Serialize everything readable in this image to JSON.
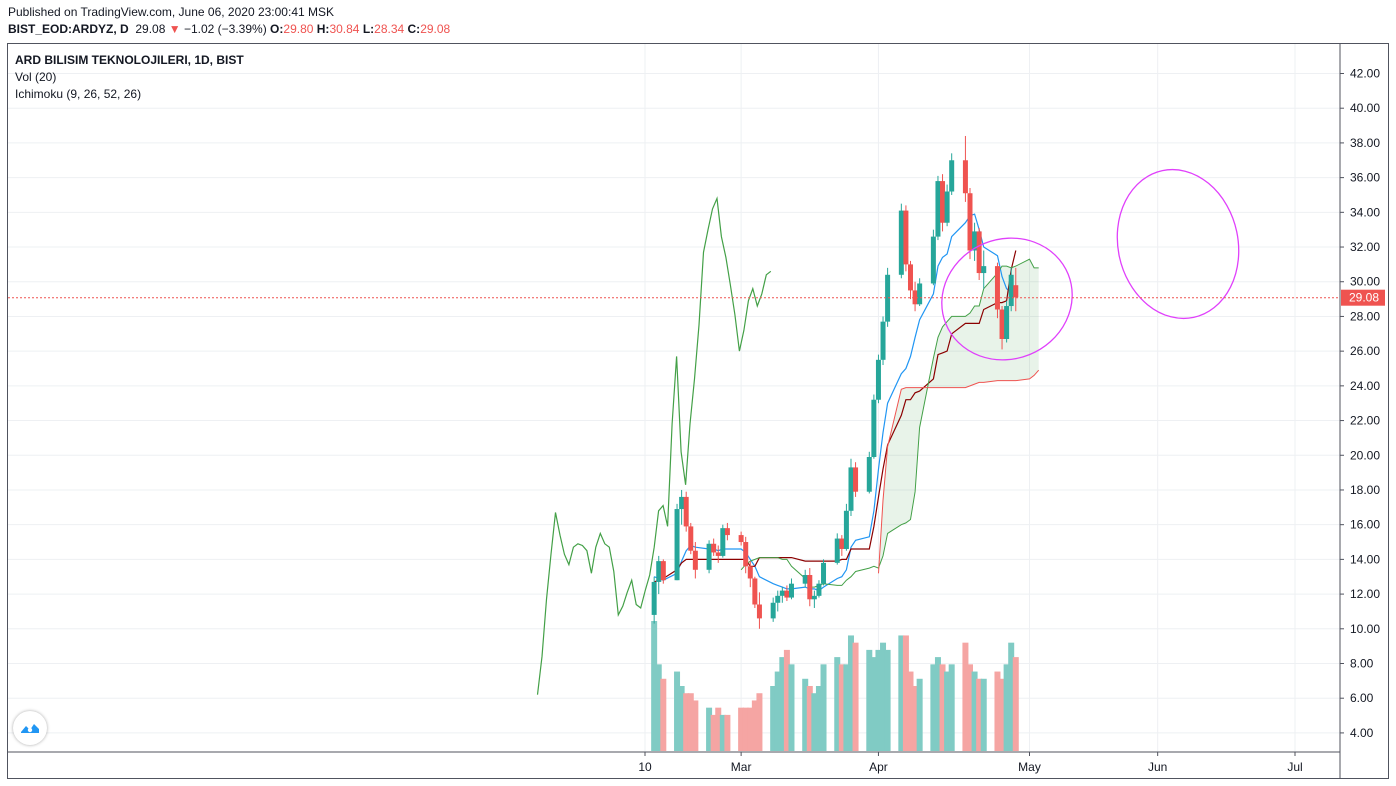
{
  "header": {
    "published": "Published on TradingView.com, June 06, 2020 23:00:41 MSK",
    "symbol": "BIST_EOD:ARDYZ, D",
    "last": "29.08",
    "arrow": "▼",
    "change": "−1.02 (−3.39%)",
    "o_label": "O:",
    "o_value": "29.80",
    "h_label": "H:",
    "h_value": "30.84",
    "l_label": "L:",
    "l_value": "28.34",
    "c_label": "C:",
    "c_value": "29.08"
  },
  "legend": {
    "title": "ARD BILISIM TEKNOLOJILERI, 1D, BIST",
    "vol": "Vol (20)",
    "ichimoku": "Ichimoku (9, 26, 52, 26)"
  },
  "price_tag": "29.08",
  "colors": {
    "up": "#26a69a",
    "down": "#ef5350",
    "chikou": "#43a047",
    "conversion": "#2196f3",
    "base": "#8b0000",
    "span_a": "#43a047",
    "span_b": "#ef5350",
    "annotation": "#e040fb",
    "last_price_line": "#ef5350"
  },
  "chart_data": {
    "type": "candlestick",
    "x_tick_labels": [
      {
        "label": "10",
        "date": "2020-02-10"
      },
      {
        "label": "Mar",
        "date": "2020-03-02"
      },
      {
        "label": "Apr",
        "date": "2020-04-01"
      },
      {
        "label": "May",
        "date": "2020-05-04"
      },
      {
        "label": "Jun",
        "date": "2020-06-01"
      },
      {
        "label": "Jul",
        "date": "2020-07-01"
      }
    ],
    "y_tick_labels": [
      "4.00",
      "6.00",
      "8.00",
      "10.00",
      "12.00",
      "14.00",
      "16.00",
      "18.00",
      "20.00",
      "22.00",
      "24.00",
      "26.00",
      "28.00",
      "30.00",
      "32.00",
      "34.00",
      "36.00",
      "38.00",
      "40.00",
      "42.00"
    ],
    "ylim": [
      2.9,
      43.7
    ],
    "last_price": 29.08,
    "candles": [
      [
        10.8,
        13.0,
        10.3,
        12.7
      ],
      [
        12.7,
        14.2,
        12.0,
        13.9
      ],
      [
        13.9,
        14.0,
        12.6,
        12.8
      ],
      [
        12.8,
        17.2,
        12.8,
        16.9
      ],
      [
        16.9,
        18.0,
        16.0,
        17.6
      ],
      [
        17.6,
        17.9,
        15.6,
        15.9
      ],
      [
        15.9,
        16.1,
        14.3,
        14.5
      ],
      [
        14.5,
        15.0,
        12.9,
        13.4
      ],
      [
        13.4,
        15.1,
        13.2,
        14.9
      ],
      [
        14.9,
        15.2,
        14.2,
        14.4
      ],
      [
        14.4,
        14.8,
        13.8,
        14.2
      ],
      [
        14.2,
        16.0,
        14.1,
        15.8
      ],
      [
        15.8,
        16.1,
        15.1,
        15.4
      ],
      [
        15.4,
        15.6,
        14.8,
        15.0
      ],
      [
        15.0,
        15.3,
        13.2,
        13.6
      ],
      [
        13.6,
        13.9,
        12.4,
        12.9
      ],
      [
        12.9,
        13.0,
        11.2,
        11.4
      ],
      [
        11.4,
        12.1,
        10.0,
        10.6
      ],
      [
        10.6,
        11.8,
        10.4,
        11.5
      ],
      [
        11.5,
        12.2,
        11.0,
        11.9
      ],
      [
        11.9,
        12.4,
        11.5,
        12.2
      ],
      [
        12.2,
        12.5,
        11.6,
        11.8
      ],
      [
        11.8,
        12.9,
        11.7,
        12.6
      ],
      [
        12.6,
        13.4,
        12.4,
        13.1
      ],
      [
        13.1,
        13.5,
        11.3,
        11.7
      ],
      [
        11.7,
        12.2,
        11.2,
        11.9
      ],
      [
        11.9,
        12.8,
        11.8,
        12.6
      ],
      [
        12.6,
        14.0,
        12.5,
        13.8
      ],
      [
        13.8,
        15.5,
        13.7,
        15.2
      ],
      [
        15.2,
        15.4,
        14.2,
        14.6
      ],
      [
        14.6,
        17.2,
        14.5,
        16.8
      ],
      [
        16.8,
        19.8,
        16.5,
        19.3
      ],
      [
        19.3,
        19.6,
        17.6,
        17.9
      ],
      [
        17.9,
        20.2,
        17.8,
        19.9
      ],
      [
        19.9,
        23.5,
        19.8,
        23.2
      ],
      [
        23.2,
        25.8,
        23.0,
        25.5
      ],
      [
        25.5,
        28.0,
        25.2,
        27.7
      ],
      [
        27.7,
        30.8,
        27.4,
        30.4
      ],
      [
        30.4,
        34.5,
        30.2,
        34.1
      ],
      [
        34.1,
        34.4,
        30.6,
        31.0
      ],
      [
        31.0,
        31.2,
        29.0,
        29.5
      ],
      [
        29.5,
        30.0,
        28.3,
        28.7
      ],
      [
        28.7,
        30.2,
        28.6,
        29.9
      ],
      [
        29.9,
        33.0,
        29.8,
        32.6
      ],
      [
        32.6,
        36.1,
        32.4,
        35.8
      ],
      [
        35.8,
        36.2,
        32.9,
        33.4
      ],
      [
        33.4,
        35.6,
        33.2,
        35.2
      ],
      [
        35.2,
        37.4,
        35.0,
        37.0
      ],
      [
        37.0,
        38.4,
        34.6,
        35.1
      ],
      [
        35.1,
        35.4,
        31.3,
        31.8
      ],
      [
        31.8,
        33.4,
        31.2,
        32.9
      ],
      [
        32.9,
        33.1,
        30.1,
        30.5
      ],
      [
        30.5,
        31.8,
        29.6,
        30.9
      ],
      [
        30.9,
        31.1,
        27.9,
        28.4
      ],
      [
        28.4,
        28.6,
        26.1,
        26.7
      ],
      [
        26.7,
        28.9,
        26.5,
        28.6
      ],
      [
        28.6,
        30.8,
        28.3,
        30.4
      ],
      [
        29.8,
        30.8,
        28.3,
        29.1
      ]
    ],
    "volume": [
      18,
      12,
      10,
      11,
      9,
      8,
      8,
      7,
      6,
      5,
      6,
      5,
      5,
      6,
      6,
      6,
      7,
      8,
      9,
      11,
      13,
      14,
      12,
      10,
      9,
      8,
      9,
      12,
      13,
      12,
      12,
      16,
      15,
      14,
      13,
      14,
      15,
      14,
      16,
      16,
      11,
      9,
      10,
      12,
      13,
      12,
      11,
      12,
      15,
      12,
      11,
      10,
      10,
      11,
      10,
      12,
      15,
      13
    ],
    "volume_max_ratio_note": "",
    "ichimoku": {
      "conversion": [
        13.0,
        12.9,
        12.8,
        13.2,
        13.9,
        14.5,
        14.8,
        14.7,
        14.6,
        14.6,
        14.5,
        14.6,
        14.6,
        14.6,
        14.4,
        14.0,
        13.6,
        13.0,
        12.6,
        12.5,
        12.4,
        12.3,
        12.3,
        12.4,
        12.3,
        12.3,
        12.2,
        12.4,
        12.9,
        13.0,
        13.4,
        14.7,
        15.1,
        15.3,
        16.8,
        19.2,
        21.3,
        23.0,
        24.7,
        25.0,
        25.7,
        26.8,
        27.8,
        29.3,
        30.9,
        31.4,
        31.6,
        32.6,
        33.4,
        33.8,
        33.9,
        33.0,
        32.0,
        31.5,
        30.3,
        29.6,
        29.4,
        29.3
      ],
      "base": [
        12.7,
        12.8,
        12.9,
        13.4,
        13.8,
        14.0,
        14.0,
        14.0,
        14.0,
        14.0,
        14.0,
        14.0,
        14.0,
        14.0,
        14.0,
        13.6,
        13.6,
        14.1,
        14.1,
        14.1,
        14.1,
        14.1,
        14.1,
        13.9,
        13.9,
        13.9,
        13.9,
        13.9,
        13.9,
        14.0,
        14.0,
        14.6,
        14.6,
        14.6,
        15.9,
        17.6,
        19.2,
        20.6,
        22.3,
        23.2,
        23.2,
        23.6,
        23.7,
        24.4,
        25.8,
        25.9,
        26.0,
        27.0,
        27.6,
        27.6,
        27.6,
        27.6,
        28.4,
        28.8,
        28.8,
        28.9,
        30.7,
        31.8
      ],
      "chikou": [
        6.2,
        8.4,
        11.7,
        14.3,
        16.7,
        15.4,
        14.3,
        13.7,
        14.7,
        14.9,
        14.8,
        14.5,
        13.2,
        14.7,
        15.5,
        14.9,
        14.7,
        13.3,
        10.8,
        11.3,
        12.1,
        12.8,
        11.4,
        11.2,
        12.2,
        13.1,
        14.7,
        16.8,
        17.1,
        15.9,
        21.8,
        25.7,
        20.2,
        18.3,
        21.8,
        24.4,
        27.5,
        31.7,
        33.0,
        34.2,
        34.8,
        32.6,
        31.4,
        29.8,
        28.1,
        26.0,
        27.2,
        28.9,
        29.6,
        28.6,
        29.3,
        30.4,
        30.6
      ],
      "span_a": [
        13.4,
        13.7,
        13.9,
        14.0,
        14.1,
        14.1,
        14.1,
        14.0,
        14.0,
        13.6,
        12.9,
        12.4,
        12.4,
        12.5,
        12.6,
        12.5,
        12.5,
        12.8,
        13.0,
        13.3,
        13.5,
        13.6,
        13.5,
        14.2,
        15.5,
        16.0,
        16.1,
        16.3,
        17.9,
        21.6,
        25.6,
        26.8,
        27.4,
        27.7,
        28.0,
        28.0,
        28.2,
        28.6,
        28.6,
        29.6,
        30.5,
        30.9,
        30.9,
        30.8,
        30.9,
        31.3,
        30.8,
        30.8
      ],
      "span_b": [
        13.2,
        17.4,
        20.5,
        23.8,
        23.9,
        23.9,
        23.9,
        23.9,
        23.9,
        23.9,
        23.9,
        23.9,
        23.9,
        23.9,
        24.0,
        24.1,
        24.2,
        24.2,
        24.3,
        24.3,
        24.3,
        24.3,
        24.3,
        24.4,
        24.6,
        24.9
      ]
    }
  }
}
